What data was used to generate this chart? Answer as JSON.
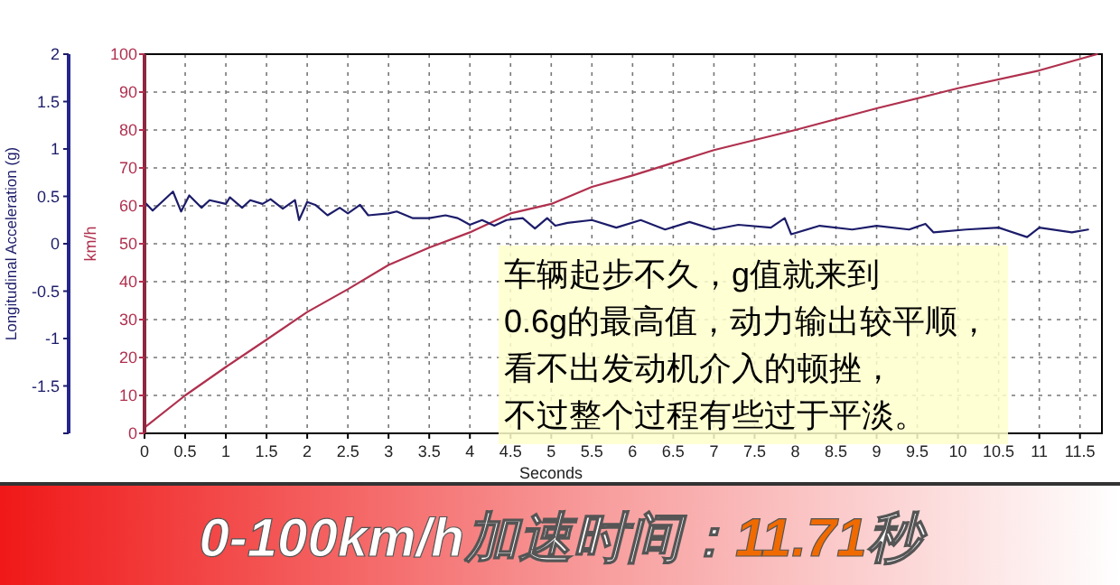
{
  "chart_data": {
    "type": "line",
    "xlabel": "Seconds",
    "ylabel": "km/h",
    "y2label": "Longitudinal Acceleration (g)",
    "xlim": [
      0,
      11.77
    ],
    "xticks": [
      0,
      0.5,
      1,
      1.5,
      2,
      2.5,
      3,
      3.5,
      4,
      4.5,
      5,
      5.5,
      6,
      6.5,
      7,
      7.5,
      8,
      8.5,
      9,
      9.5,
      10,
      10.5,
      11,
      11.5
    ],
    "ylim": [
      0,
      100
    ],
    "yticks": [
      0,
      10,
      20,
      30,
      40,
      50,
      60,
      70,
      80,
      90,
      100
    ],
    "y2lim": [
      -2,
      2
    ],
    "y2ticks": [
      {
        "value": -2,
        "label": null
      },
      -1.5,
      -1,
      -0.5,
      0,
      0.5,
      1,
      1.5,
      2
    ],
    "grid": true,
    "series": [
      {
        "color": "#b0304e",
        "x": [
          0,
          0.5,
          1,
          1.5,
          2,
          2.5,
          3,
          3.5,
          4,
          4.5,
          5,
          5.5,
          6,
          7,
          8,
          9,
          10,
          11,
          11.71
        ],
        "values": [
          1.5,
          10,
          17.5,
          24.7,
          32,
          38,
          44.4,
          49,
          53,
          58,
          60.5,
          65,
          68,
          74.7,
          80,
          85.7,
          91,
          95.7,
          100
        ]
      },
      {
        "color": "#1c1c6a",
        "axis": "y2",
        "x": [
          0,
          0.1,
          0.35,
          0.45,
          0.55,
          0.7,
          0.8,
          1,
          1.05,
          1.2,
          1.3,
          1.45,
          1.55,
          1.7,
          1.85,
          1.9,
          2,
          2.1,
          2.25,
          2.4,
          2.5,
          2.65,
          2.75,
          3,
          3.1,
          3.3,
          3.5,
          3.7,
          3.85,
          4,
          4.15,
          4.3,
          4.45,
          4.65,
          4.8,
          4.95,
          5.05,
          5.2,
          5.5,
          5.8,
          6.1,
          6.4,
          6.7,
          7,
          7.3,
          7.7,
          7.87,
          7.95,
          8.3,
          8.7,
          9,
          9.4,
          9.6,
          9.7,
          10.1,
          10.5,
          10.85,
          11,
          11.4,
          11.6
        ],
        "values": [
          0.44,
          0.35,
          0.55,
          0.34,
          0.51,
          0.38,
          0.46,
          0.42,
          0.49,
          0.38,
          0.46,
          0.42,
          0.47,
          0.37,
          0.46,
          0.25,
          0.44,
          0.41,
          0.3,
          0.38,
          0.32,
          0.41,
          0.3,
          0.32,
          0.34,
          0.27,
          0.27,
          0.3,
          0.27,
          0.2,
          0.25,
          0.19,
          0.25,
          0.27,
          0.16,
          0.27,
          0.19,
          0.22,
          0.25,
          0.17,
          0.25,
          0.15,
          0.23,
          0.15,
          0.2,
          0.17,
          0.27,
          0.1,
          0.19,
          0.15,
          0.19,
          0.15,
          0.21,
          0.12,
          0.15,
          0.17,
          0.07,
          0.17,
          0.12,
          0.15
        ]
      }
    ],
    "annotations": [
      "车辆起步不久，g值就来到",
      "0.6g的最高值，动力输出较平顺，",
      "看不出发动机介入的顿挫，",
      "不过整个过程有些过于平淡。",
      "0-100km/h加速时间：11.71秒"
    ]
  }
}
